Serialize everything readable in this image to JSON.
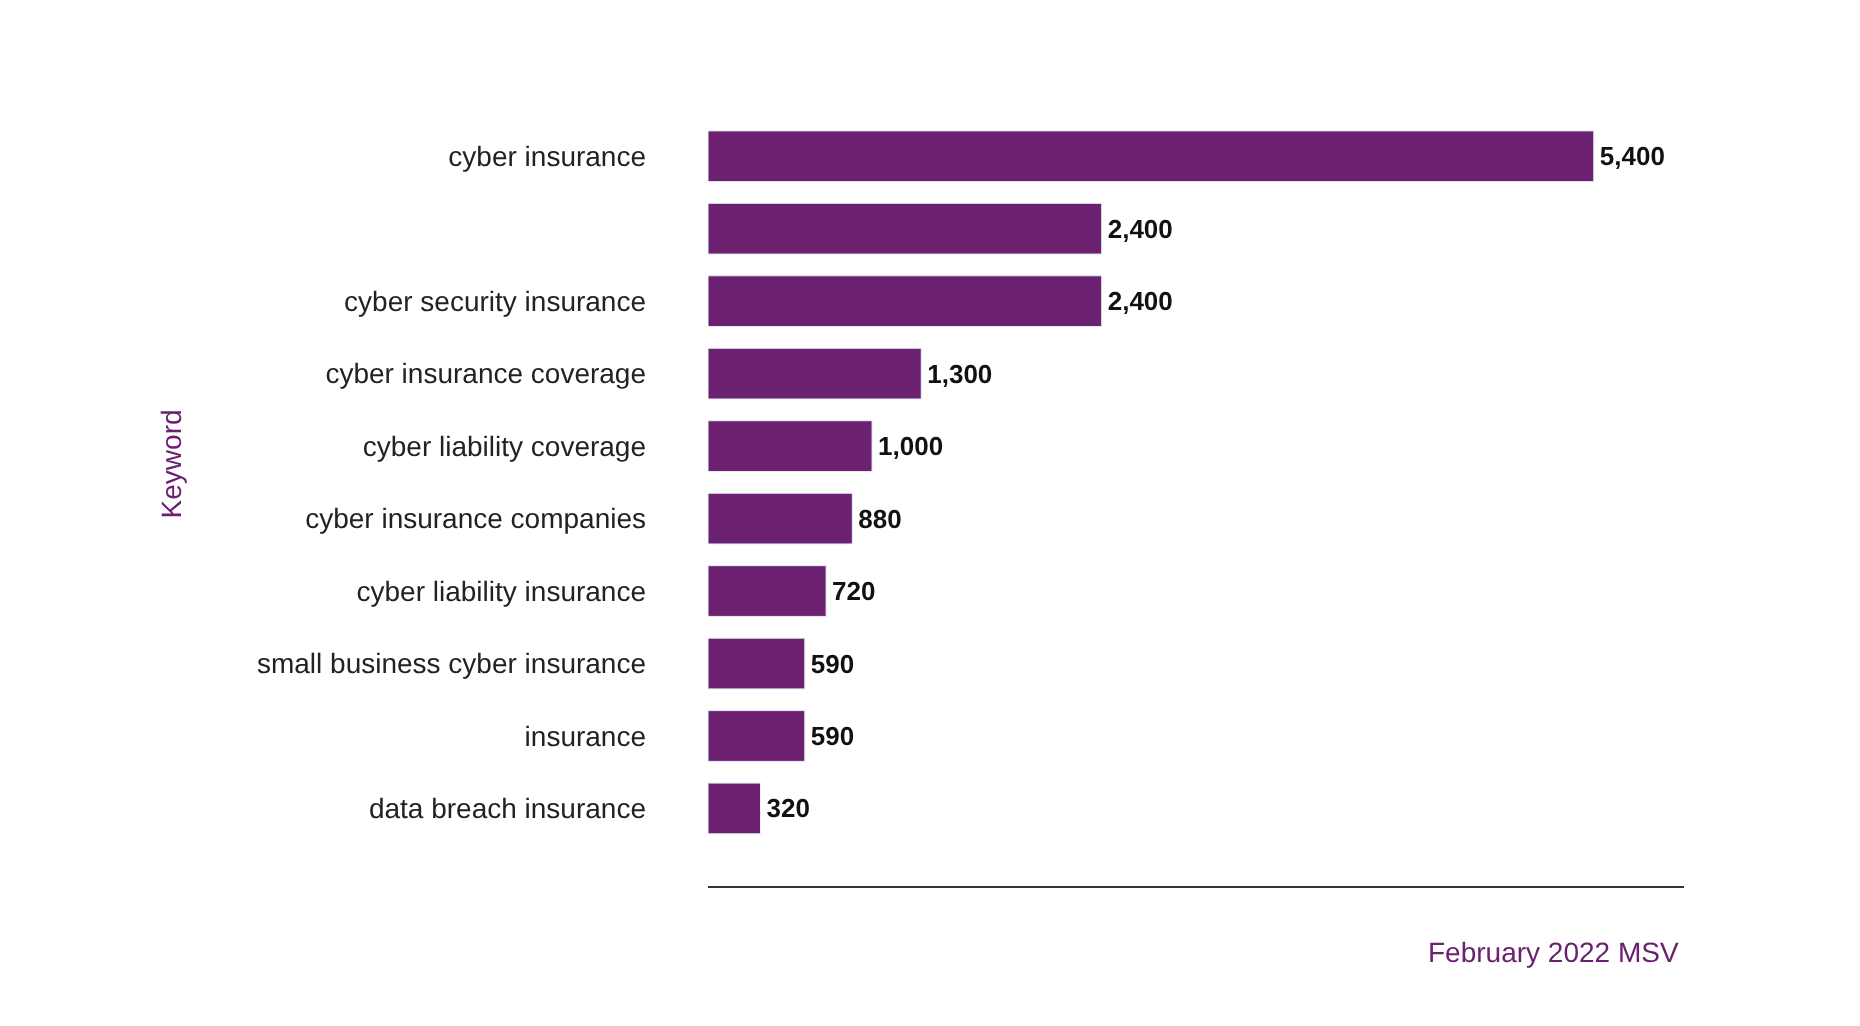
{
  "chart_data": {
    "type": "bar",
    "orientation": "horizontal",
    "xlabel": "February 2022 MSV",
    "ylabel": "Keyword",
    "categories": [
      "cyber insurance",
      null,
      "cyber security insurance",
      "cyber insurance coverage",
      "cyber liability coverage",
      "cyber insurance companies",
      "cyber liability insurance",
      "small business cyber insurance",
      "insurance",
      "data breach insurance"
    ],
    "values": [
      5400,
      2400,
      2400,
      1300,
      1000,
      880,
      720,
      590,
      590,
      320
    ],
    "value_labels": [
      "5,400",
      "2,400",
      "2,400",
      "1,300",
      "1,000",
      "880",
      "720",
      "590",
      "590",
      "320"
    ],
    "color": "#6b2070",
    "xlim": [
      0,
      5950
    ],
    "tick_labels": "y"
  }
}
